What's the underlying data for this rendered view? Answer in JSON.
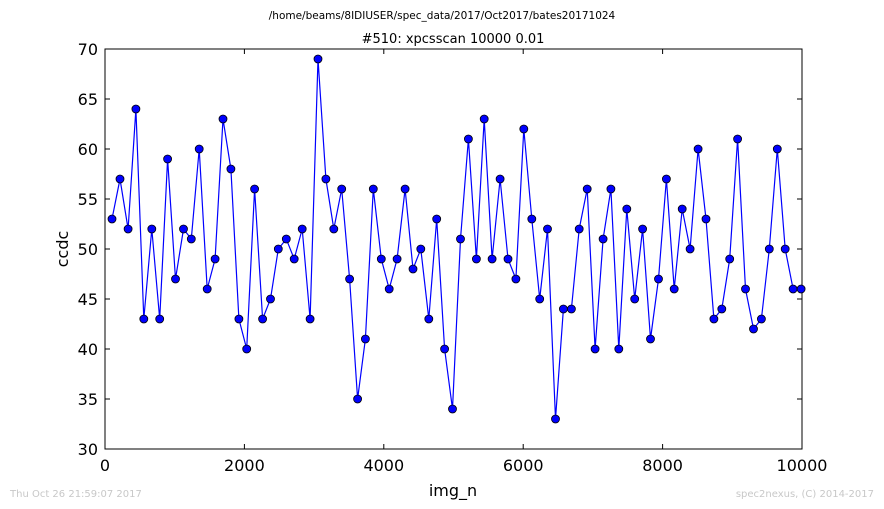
{
  "chart_data": {
    "type": "line",
    "suptitle": "/home/beams/8IDIUSER/spec_data/2017/Oct2017/bates20171024",
    "title": "#510: xpcsscan 10000 0.01",
    "xlabel": "img_n",
    "ylabel": "ccdc",
    "xlim": [
      0,
      10000
    ],
    "ylim": [
      30,
      70
    ],
    "xticks": [
      0,
      2000,
      4000,
      6000,
      8000,
      10000
    ],
    "yticks": [
      30,
      35,
      40,
      45,
      50,
      55,
      60,
      65,
      70
    ],
    "grid": false,
    "line_color": "#0000ff",
    "marker_color": "#0000ff",
    "series": [
      {
        "x": [
          101,
          215,
          331,
          443,
          557,
          671,
          785,
          898,
          1012,
          1126,
          1238,
          1352,
          1466,
          1580,
          1693,
          1807,
          1921,
          2033,
          2147,
          2261,
          2375,
          2487,
          2601,
          2715,
          2829,
          2942,
          3056,
          3170,
          3282,
          3396,
          3510,
          3624,
          3736,
          3850,
          3964,
          4078,
          4191,
          4305,
          4419,
          4531,
          4645,
          4759,
          4873,
          4986,
          5100,
          5214,
          5328,
          5440,
          5554,
          5668,
          5782,
          5895,
          6009,
          6123,
          6237,
          6349,
          6463,
          6577,
          6691,
          6804,
          6918,
          7032,
          7146,
          7258,
          7372,
          7486,
          7600,
          7713,
          7827,
          7941,
          8055,
          8167,
          8281,
          8395,
          8509,
          8622,
          8736,
          8850,
          8962,
          9076,
          9190,
          9304,
          9418,
          9531,
          9645,
          9759,
          9873,
          9987
        ],
        "y": [
          53,
          57,
          52,
          64,
          43,
          52,
          43,
          59,
          47,
          52,
          51,
          60,
          46,
          49,
          63,
          58,
          43,
          40,
          56,
          43,
          45,
          50,
          51,
          49,
          52,
          43,
          69,
          57,
          52,
          56,
          47,
          35,
          41,
          56,
          49,
          46,
          49,
          56,
          48,
          50,
          43,
          53,
          40,
          34,
          51,
          61,
          49,
          63,
          49,
          57,
          49,
          47,
          62,
          53,
          45,
          52,
          33,
          44,
          44,
          52,
          56,
          40,
          51,
          56,
          40,
          54,
          45,
          52,
          41,
          47,
          57,
          46,
          54,
          50,
          60,
          53,
          43,
          44,
          49,
          61,
          46,
          42,
          43,
          50,
          60,
          50,
          46,
          46
        ]
      }
    ]
  },
  "footer": {
    "left": "Thu Oct 26 21:59:07 2017",
    "right": "spec2nexus, (C) 2014-2017"
  }
}
